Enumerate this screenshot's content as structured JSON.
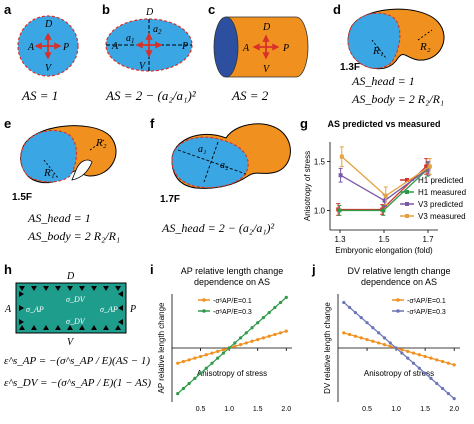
{
  "colors": {
    "blue": "#3aa6e3",
    "blue_dark": "#2d4fa0",
    "orange": "#f0901e",
    "red": "#d8302a",
    "teal": "#1e9d8c",
    "green": "#2e9a4a",
    "purple": "#7a59a6",
    "gold": "#e3a23d",
    "slate": "#6c74b8"
  },
  "panels": {
    "a": {
      "label": "a",
      "D": "D",
      "A": "A",
      "P": "P",
      "V": "V",
      "eq": "AS = 1"
    },
    "b": {
      "label": "b",
      "D": "D",
      "A": "A",
      "P": "P",
      "V": "V",
      "a1": "a",
      "a1_sub": "1",
      "a2": "a",
      "a2_sub": "2",
      "eq": "AS = 2 − (a₂/a₁)²"
    },
    "c": {
      "label": "c",
      "D": "D",
      "A": "A",
      "P": "P",
      "V": "V",
      "eq": "AS = 2"
    },
    "d": {
      "label": "d",
      "stage": "1.3F",
      "R1": "R₁",
      "R2": "R₂",
      "eq1": "AS_head = 1",
      "eq2": "AS_body = 2 R₂/R₁"
    },
    "e": {
      "label": "e",
      "stage": "1.5F",
      "R1": "R₁",
      "R2": "R₂",
      "eq1": "AS_head = 1",
      "eq2": "AS_body = 2 R₂/R₁"
    },
    "f": {
      "label": "f",
      "stage": "1.7F",
      "a1": "a₁",
      "a2": "a₂",
      "eq": "AS_head = 2 − (a₂/a₁)²"
    },
    "h": {
      "label": "h",
      "D": "D",
      "A": "A",
      "P": "P",
      "V": "V",
      "sdv": "σ_DV",
      "sap": "σ_AP",
      "eq1": "ε^s_AP = −(σ^s_AP / E)(AS − 1)",
      "eq2": "ε^s_DV = −(σ^s_AP / E)(1 − AS)"
    }
  },
  "chart_data": [
    {
      "panel": "g",
      "type": "line",
      "title": "AS predicted vs measured",
      "xlabel": "Embryonic elongation (fold)",
      "ylabel": "Anisotropy of stress",
      "categories": [
        "1.3",
        "1.5",
        "1.7"
      ],
      "ylim": [
        0.8,
        1.7
      ],
      "yticks": [
        "1.0",
        "1.5"
      ],
      "legend_position": "bottom-right",
      "series": [
        {
          "name": "H1 predicted",
          "color": "#d8302a",
          "values": [
            1.01,
            1.01,
            1.45
          ],
          "err": [
            0.06,
            0.05,
            0.08
          ]
        },
        {
          "name": "H1 measured",
          "color": "#2e9a4a",
          "values": [
            1.0,
            1.0,
            1.42
          ],
          "err": [
            0.05,
            0.05,
            0.07
          ]
        },
        {
          "name": "V3 predicted",
          "color": "#7a59a6",
          "values": [
            1.36,
            1.1,
            1.43
          ],
          "err": [
            0.07,
            0.06,
            0.07
          ]
        },
        {
          "name": "V3 measured",
          "color": "#e3a23d",
          "values": [
            1.55,
            1.15,
            1.45
          ],
          "err": [
            0.1,
            0.09,
            0.08
          ]
        }
      ]
    },
    {
      "panel": "i",
      "type": "line",
      "title": "AP relative length change dependence on AS",
      "xlabel": "Anisotropy of stress",
      "ylabel": "AP relative length change",
      "xticks": [
        "0.5",
        "1.0",
        "1.5",
        "2.0"
      ],
      "xlim": [
        0,
        2.1
      ],
      "ylim": [
        -0.32,
        0.32
      ],
      "legend_position": "top-left",
      "series": [
        {
          "name": "-σˢAP/E=0.1",
          "color": "#f0901e",
          "x": [
            0.1,
            0.2,
            0.3,
            0.4,
            0.5,
            0.6,
            0.7,
            0.8,
            0.9,
            1.0,
            1.1,
            1.2,
            1.3,
            1.4,
            1.5,
            1.6,
            1.7,
            1.8,
            1.9,
            2.0
          ],
          "values": [
            -0.09,
            -0.08,
            -0.07,
            -0.06,
            -0.05,
            -0.04,
            -0.03,
            -0.02,
            -0.01,
            0,
            0.01,
            0.02,
            0.03,
            0.04,
            0.05,
            0.06,
            0.07,
            0.08,
            0.09,
            0.1
          ]
        },
        {
          "name": "-σˢAP/E=0.3",
          "color": "#2e9a4a",
          "x": [
            0.1,
            0.2,
            0.3,
            0.4,
            0.5,
            0.6,
            0.7,
            0.8,
            0.9,
            1.0,
            1.1,
            1.2,
            1.3,
            1.4,
            1.5,
            1.6,
            1.7,
            1.8,
            1.9,
            2.0
          ],
          "values": [
            -0.27,
            -0.24,
            -0.21,
            -0.18,
            -0.15,
            -0.12,
            -0.09,
            -0.06,
            -0.03,
            0,
            0.03,
            0.06,
            0.09,
            0.12,
            0.15,
            0.18,
            0.21,
            0.24,
            0.27,
            0.3
          ]
        }
      ]
    },
    {
      "panel": "j",
      "type": "line",
      "title": "DV relative length change dependence on AS",
      "xlabel": "Anisotropy of stress",
      "ylabel": "DV relative length change",
      "xticks": [
        "0.5",
        "1.0",
        "1.5",
        "2.0"
      ],
      "xlim": [
        0,
        2.1
      ],
      "ylim": [
        -0.32,
        0.32
      ],
      "legend_position": "top-right",
      "series": [
        {
          "name": "-σˢAP/E=0.1",
          "color": "#f0901e",
          "x": [
            0.1,
            0.2,
            0.3,
            0.4,
            0.5,
            0.6,
            0.7,
            0.8,
            0.9,
            1.0,
            1.1,
            1.2,
            1.3,
            1.4,
            1.5,
            1.6,
            1.7,
            1.8,
            1.9,
            2.0
          ],
          "values": [
            0.09,
            0.08,
            0.07,
            0.06,
            0.05,
            0.04,
            0.03,
            0.02,
            0.01,
            0,
            -0.01,
            -0.02,
            -0.03,
            -0.04,
            -0.05,
            -0.06,
            -0.07,
            -0.08,
            -0.09,
            -0.1
          ]
        },
        {
          "name": "-σˢAP/E=0.3",
          "color": "#6c74b8",
          "x": [
            0.1,
            0.2,
            0.3,
            0.4,
            0.5,
            0.6,
            0.7,
            0.8,
            0.9,
            1.0,
            1.1,
            1.2,
            1.3,
            1.4,
            1.5,
            1.6,
            1.7,
            1.8,
            1.9,
            2.0
          ],
          "values": [
            0.27,
            0.24,
            0.21,
            0.18,
            0.15,
            0.12,
            0.09,
            0.06,
            0.03,
            0,
            -0.03,
            -0.06,
            -0.09,
            -0.12,
            -0.15,
            -0.18,
            -0.21,
            -0.24,
            -0.27,
            -0.3
          ]
        }
      ]
    }
  ]
}
